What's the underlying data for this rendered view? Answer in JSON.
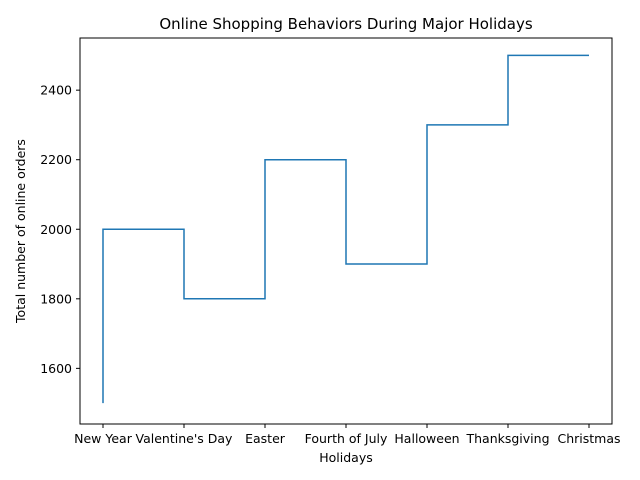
{
  "chart_data": {
    "type": "line",
    "drawstyle": "steps-pre",
    "title": "Online Shopping Behaviors During Major Holidays",
    "xlabel": "Holidays",
    "ylabel": "Total number of online orders",
    "categories": [
      "New Year",
      "Valentine's Day",
      "Easter",
      "Fourth of July",
      "Halloween",
      "Thanksgiving",
      "Christmas"
    ],
    "series": [
      {
        "values": [
          1500,
          2000,
          1800,
          2200,
          1900,
          2300,
          2500
        ],
        "color": "#1f77b4"
      }
    ],
    "yticks": [
      1600,
      1800,
      2000,
      2200,
      2400
    ],
    "ylim": [
      1440,
      2550
    ],
    "grid": false,
    "legend": "none"
  }
}
